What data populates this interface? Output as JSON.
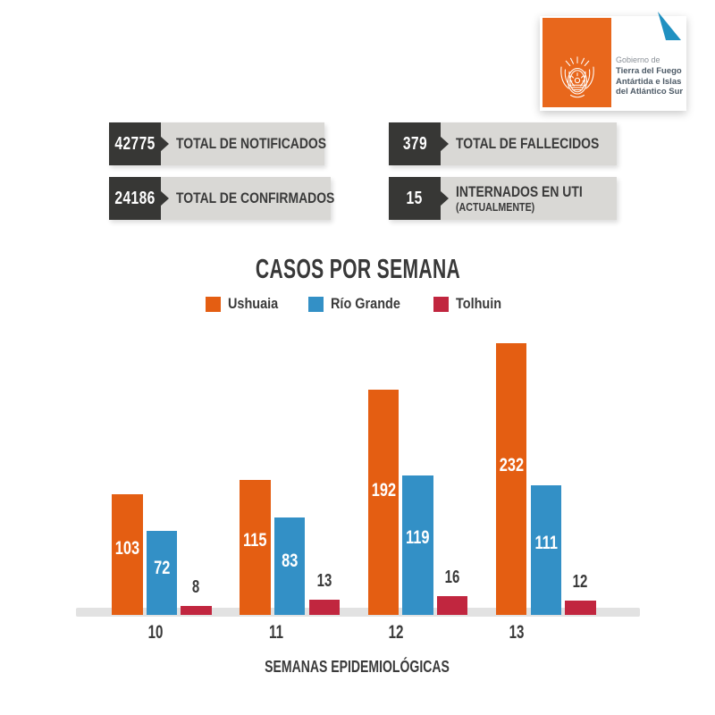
{
  "logo": {
    "org_prefix": "Gobierno de",
    "org_name_lines": [
      "Tierra del Fuego",
      "Antártida e Islas",
      "del Atlántico Sur"
    ],
    "emblem_icon": "coat-of-arms-icon",
    "corner_icon": "folded-corner-triangle-icon",
    "colors": {
      "box": "#E8671C",
      "triangle": "#2191C1"
    }
  },
  "stats": [
    {
      "value": "42775",
      "label": "TOTAL DE NOTIFICADOS"
    },
    {
      "value": "24186",
      "label": "TOTAL DE CONFIRMADOS"
    },
    {
      "value": "379",
      "label": "TOTAL DE FALLECIDOS"
    },
    {
      "value": "15",
      "label": "INTERNADOS EN UTI",
      "sublabel": "(ACTUALMENTE)"
    }
  ],
  "colors": {
    "stat_box_dark": "#373735",
    "stat_box_light": "#D9D8D5",
    "axis_strip": "#E2E2E2",
    "text_dark": "#3A3A3A"
  },
  "chart_data": {
    "type": "bar",
    "title": "CASOS POR SEMANA",
    "xlabel": "SEMANAS EPIDEMIOLÓGICAS",
    "categories": [
      "10",
      "11",
      "12",
      "13"
    ],
    "series": [
      {
        "name": "Ushuaia",
        "color": "#E45E12",
        "values": [
          103,
          115,
          192,
          232
        ]
      },
      {
        "name": "Río Grande",
        "color": "#3390C6",
        "values": [
          72,
          83,
          119,
          111
        ]
      },
      {
        "name": "Tolhuin",
        "color": "#C1263F",
        "values": [
          8,
          13,
          16,
          12
        ]
      }
    ],
    "legend_position": "top",
    "grid": false,
    "y_axis_shown": false,
    "ylim": [
      0,
      240
    ],
    "value_labels": "inside bars for Ushuaia and Río Grande (white), above bars for Tolhuin (dark)"
  }
}
